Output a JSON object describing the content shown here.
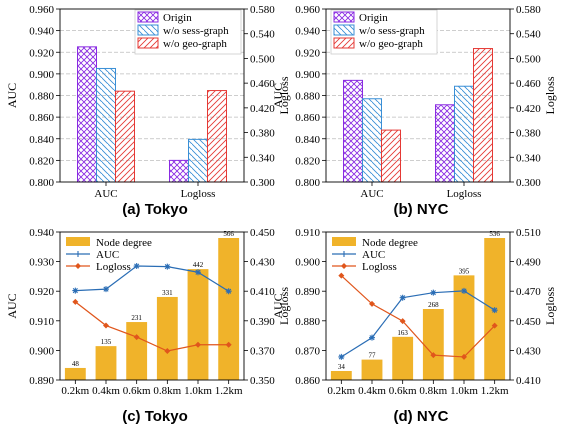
{
  "colors": {
    "origin": "#8a2be2",
    "sess": "#3a8fd6",
    "geo": "#e53935",
    "degree_bar": "#f0b32a",
    "auc_line": "#2a6db5",
    "logloss_line": "#e0561c",
    "grid": "#bdbdbd"
  },
  "chart_data": [
    {
      "type": "bar",
      "caption": "(a) Tokyo",
      "categories": [
        "AUC",
        "Logloss"
      ],
      "ylabel": "AUC",
      "y2label": "Logloss",
      "ylim": [
        0.8,
        0.96
      ],
      "y2lim": [
        0.3,
        0.58
      ],
      "yticks": [
        "0.800",
        "0.820",
        "0.840",
        "0.860",
        "0.880",
        "0.900",
        "0.920",
        "0.940",
        "0.960"
      ],
      "y2ticks": [
        "0.300",
        "0.340",
        "0.380",
        "0.420",
        "0.460",
        "0.500",
        "0.540",
        "0.580"
      ],
      "grid": true,
      "legend_position": "top-right",
      "series": [
        {
          "name": "Origin",
          "auc": 0.925,
          "logloss": 0.335
        },
        {
          "name": "w/o sess-graph",
          "auc": 0.905,
          "logloss": 0.369
        },
        {
          "name": "w/o geo-graph",
          "auc": 0.884,
          "logloss": 0.448
        }
      ]
    },
    {
      "type": "bar",
      "caption": "(b) NYC",
      "categories": [
        "AUC",
        "Logloss"
      ],
      "ylabel": "AUC",
      "y2label": "Logloss",
      "ylim": [
        0.8,
        0.96
      ],
      "y2lim": [
        0.3,
        0.58
      ],
      "yticks": [
        "0.800",
        "0.820",
        "0.840",
        "0.860",
        "0.880",
        "0.900",
        "0.920",
        "0.940",
        "0.960"
      ],
      "y2ticks": [
        "0.300",
        "0.340",
        "0.380",
        "0.420",
        "0.460",
        "0.500",
        "0.540",
        "0.580"
      ],
      "grid": true,
      "legend_position": "top-left",
      "series": [
        {
          "name": "Origin",
          "auc": 0.894,
          "logloss": 0.425
        },
        {
          "name": "w/o sess-graph",
          "auc": 0.877,
          "logloss": 0.455
        },
        {
          "name": "w/o geo-graph",
          "auc": 0.848,
          "logloss": 0.516
        }
      ]
    },
    {
      "type": "bar+line",
      "caption": "(c) Tokyo",
      "categories": [
        "0.2km",
        "0.4km",
        "0.6km",
        "0.8km",
        "1.0km",
        "1.2km"
      ],
      "ylabel": "AUC",
      "y2label": "Logloss",
      "ylim": [
        0.89,
        0.94
      ],
      "y2lim": [
        0.35,
        0.45
      ],
      "yticks": [
        "0.890",
        "0.900",
        "0.910",
        "0.920",
        "0.930",
        "0.940"
      ],
      "y2ticks": [
        "0.350",
        "0.370",
        "0.390",
        "0.410",
        "0.430",
        "0.450"
      ],
      "legend_position": "top-left",
      "bar_series": {
        "name": "Node degree",
        "values": [
          48,
          135,
          231,
          331,
          442,
          566
        ],
        "labels": [
          "48",
          "135",
          "231",
          "331",
          "442",
          "566"
        ],
        "max": 566
      },
      "line_series": [
        {
          "name": "AUC",
          "axis": "left",
          "values": [
            0.9202,
            0.9207,
            0.9285,
            0.9283,
            0.9264,
            0.92
          ]
        },
        {
          "name": "Logloss",
          "axis": "right",
          "values": [
            0.4028,
            0.3868,
            0.379,
            0.3696,
            0.3738,
            0.3738
          ]
        }
      ]
    },
    {
      "type": "bar+line",
      "caption": "(d) NYC",
      "categories": [
        "0.2km",
        "0.4km",
        "0.6km",
        "0.8km",
        "1.0km",
        "1.2km"
      ],
      "ylabel": "AUC",
      "y2label": "Logloss",
      "ylim": [
        0.86,
        0.91
      ],
      "y2lim": [
        0.41,
        0.51
      ],
      "yticks": [
        "0.860",
        "0.870",
        "0.880",
        "0.890",
        "0.900",
        "0.910"
      ],
      "y2ticks": [
        "0.410",
        "0.430",
        "0.450",
        "0.470",
        "0.490",
        "0.510"
      ],
      "legend_position": "top-left",
      "bar_series": {
        "name": "Node degree",
        "values": [
          34,
          77,
          163,
          268,
          395,
          536
        ],
        "labels": [
          "34",
          "77",
          "163",
          "268",
          "395",
          "536"
        ],
        "max": 536
      },
      "line_series": [
        {
          "name": "AUC",
          "axis": "left",
          "values": [
            0.8678,
            0.8743,
            0.8878,
            0.8895,
            0.8901,
            0.8836
          ]
        },
        {
          "name": "Logloss",
          "axis": "right",
          "values": [
            0.4805,
            0.4614,
            0.4498,
            0.4268,
            0.4256,
            0.4467
          ]
        }
      ]
    }
  ]
}
